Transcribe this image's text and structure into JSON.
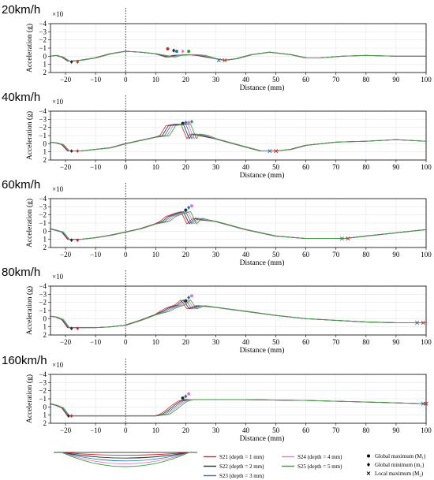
{
  "figure": {
    "xlabel": "Distance (mm)",
    "ylabel": "Acceleration (g)",
    "exponent_label": "×10",
    "legend_series": [
      {
        "name": "S21 (depth = 1 mm)",
        "color": "#d62728"
      },
      {
        "name": "S22 (depth = 2 mm)",
        "color": "#2b2b2b"
      },
      {
        "name": "S23 (depth = 3 mm)",
        "color": "#1f77b4"
      },
      {
        "name": "S24 (depth = 4 mm)",
        "color": "#e377c2"
      },
      {
        "name": "S25 (depth = 5 mm)",
        "color": "#2ca02c"
      }
    ],
    "legend_markers": [
      {
        "symbol": "circle",
        "label": "Global maximum (M₁)"
      },
      {
        "symbol": "diamond",
        "label": "Global minimum (m₁)"
      },
      {
        "symbol": "cross",
        "label": "Local maximum (M₂)"
      }
    ]
  },
  "chart_data": [
    {
      "type": "line",
      "title": "20km/h",
      "xlabel": "Distance (mm)",
      "ylabel": "Acceleration (g)",
      "xlim": [
        -25,
        100
      ],
      "ylim": [
        2,
        -4
      ],
      "xticks": [
        -20,
        -10,
        0,
        10,
        20,
        30,
        40,
        50,
        60,
        70,
        80,
        90,
        100
      ],
      "yticks": [
        -4,
        -3,
        -2,
        -1,
        0,
        1,
        2
      ],
      "dashed_vline_x": 0,
      "pts": [
        [
          -25,
          0
        ],
        [
          -23,
          -0.1
        ],
        [
          -21,
          0.1
        ],
        [
          -19,
          0.6
        ],
        [
          -18,
          0.6
        ],
        [
          -15,
          0.5
        ],
        [
          -10,
          0.2
        ],
        [
          -5,
          -0.3
        ],
        [
          0,
          -0.6
        ],
        [
          5,
          -0.5
        ],
        [
          10,
          -0.3
        ],
        [
          15,
          0.1
        ],
        [
          17,
          -0.1
        ],
        [
          22,
          -0.2
        ],
        [
          25,
          -0.1
        ],
        [
          30,
          0.3
        ],
        [
          33,
          0.5
        ],
        [
          37,
          0.3
        ],
        [
          42,
          -0.2
        ],
        [
          48,
          -0.5
        ],
        [
          55,
          -0.2
        ],
        [
          60,
          0.2
        ],
        [
          65,
          0.2
        ],
        [
          72,
          0
        ],
        [
          80,
          -0.1
        ],
        [
          90,
          0
        ],
        [
          100,
          0
        ]
      ],
      "jumps": [
        {
          "x": 14,
          "y": -0.9
        },
        {
          "x": 16,
          "y": -0.7
        },
        {
          "x": 17,
          "y": -0.6
        },
        {
          "x": 19,
          "y": -0.6
        },
        {
          "x": 21,
          "y": -0.6
        }
      ],
      "global_min_markers": [
        [
          -18,
          0.7
        ],
        [
          -16,
          0.7
        ]
      ],
      "local_max_markers": [
        [
          31,
          0.5
        ],
        [
          33,
          0.5
        ]
      ]
    },
    {
      "type": "line",
      "title": "40km/h",
      "xlabel": "Distance (mm)",
      "ylabel": "Acceleration (g)",
      "xlim": [
        -25,
        100
      ],
      "ylim": [
        2,
        -4
      ],
      "xticks": [
        -20,
        -10,
        0,
        10,
        20,
        30,
        40,
        50,
        60,
        70,
        80,
        90,
        100
      ],
      "yticks": [
        -4,
        -3,
        -2,
        -1,
        0,
        1,
        2
      ],
      "dashed_vline_x": 0,
      "pts": [
        [
          -25,
          -0.2
        ],
        [
          -23,
          -0.1
        ],
        [
          -21,
          0.1
        ],
        [
          -19,
          0.9
        ],
        [
          -18,
          0.9
        ],
        [
          -15,
          0.9
        ],
        [
          -10,
          0.7
        ],
        [
          -5,
          0.5
        ],
        [
          0,
          0
        ],
        [
          5,
          -0.4
        ],
        [
          10,
          -0.8
        ],
        [
          13,
          -1
        ],
        [
          15,
          -2.2
        ],
        [
          18,
          -2.4
        ],
        [
          20,
          -2.4
        ],
        [
          22,
          -0.6
        ],
        [
          23,
          -1.2
        ],
        [
          26,
          -1
        ],
        [
          30,
          -0.6
        ],
        [
          38,
          0.2
        ],
        [
          45,
          0.9
        ],
        [
          50,
          0.9
        ],
        [
          55,
          0.7
        ],
        [
          60,
          0.2
        ],
        [
          70,
          -0.2
        ],
        [
          80,
          -0.3
        ],
        [
          90,
          -0.5
        ],
        [
          100,
          -0.3
        ]
      ],
      "jumps": [
        {
          "x": 19,
          "y": -2.5
        },
        {
          "x": 20,
          "y": -2.6
        },
        {
          "x": 21,
          "y": -2.6
        },
        {
          "x": 22,
          "y": -2.7
        }
      ],
      "global_min_markers": [
        [
          -18,
          0.9
        ],
        [
          -16,
          0.9
        ]
      ],
      "local_max_markers": [
        [
          48,
          0.9
        ],
        [
          50,
          0.9
        ]
      ]
    },
    {
      "type": "line",
      "title": "60km/h",
      "xlabel": "Distance (mm)",
      "ylabel": "Acceleration (g)",
      "xlim": [
        -25,
        100
      ],
      "ylim": [
        2,
        -4
      ],
      "xticks": [
        -20,
        -10,
        0,
        10,
        20,
        30,
        40,
        50,
        60,
        70,
        80,
        90,
        100
      ],
      "yticks": [
        -4,
        -3,
        -2,
        -1,
        0,
        1,
        2
      ],
      "dashed_vline_x": 0,
      "pts": [
        [
          -25,
          -0.3
        ],
        [
          -23,
          -0.1
        ],
        [
          -21,
          0.1
        ],
        [
          -19,
          1
        ],
        [
          -18,
          1
        ],
        [
          -15,
          1
        ],
        [
          -10,
          0.8
        ],
        [
          -5,
          0.5
        ],
        [
          0,
          0.1
        ],
        [
          5,
          -0.3
        ],
        [
          10,
          -0.9
        ],
        [
          13,
          -1.2
        ],
        [
          15,
          -1.8
        ],
        [
          18,
          -2.2
        ],
        [
          20,
          -2.4
        ],
        [
          22,
          -0.9
        ],
        [
          24,
          -1.6
        ],
        [
          26,
          -1.4
        ],
        [
          30,
          -1.2
        ],
        [
          40,
          -0.2
        ],
        [
          50,
          0.6
        ],
        [
          60,
          0.9
        ],
        [
          70,
          0.9
        ],
        [
          73,
          0.9
        ],
        [
          80,
          0.6
        ],
        [
          90,
          0.2
        ],
        [
          100,
          -0.2
        ]
      ],
      "jumps": [
        {
          "x": 20,
          "y": -2.6
        },
        {
          "x": 21,
          "y": -2.9
        },
        {
          "x": 22,
          "y": -3.1
        }
      ],
      "global_min_markers": [
        [
          -18,
          1.1
        ],
        [
          -16,
          1.1
        ]
      ],
      "local_max_markers": [
        [
          72,
          0.9
        ],
        [
          74,
          0.9
        ]
      ]
    },
    {
      "type": "line",
      "title": "80km/h",
      "xlabel": "Distance (mm)",
      "ylabel": "Acceleration (g)",
      "xlim": [
        -25,
        100
      ],
      "ylim": [
        2,
        -4
      ],
      "xticks": [
        -20,
        -10,
        0,
        10,
        20,
        30,
        40,
        50,
        60,
        70,
        80,
        90,
        100
      ],
      "yticks": [
        -4,
        -3,
        -2,
        -1,
        0,
        1,
        2
      ],
      "dashed_vline_x": 0,
      "pts": [
        [
          -25,
          -0.3
        ],
        [
          -23,
          -0.2
        ],
        [
          -21,
          0.1
        ],
        [
          -19,
          1.1
        ],
        [
          -18,
          1.1
        ],
        [
          -15,
          1.1
        ],
        [
          -10,
          1.1
        ],
        [
          -5,
          1
        ],
        [
          0,
          0.8
        ],
        [
          5,
          0.2
        ],
        [
          10,
          -0.5
        ],
        [
          13,
          -0.9
        ],
        [
          15,
          -1.3
        ],
        [
          18,
          -1.7
        ],
        [
          20,
          -2.3
        ],
        [
          22,
          -1.2
        ],
        [
          25,
          -1.6
        ],
        [
          30,
          -1.4
        ],
        [
          40,
          -0.9
        ],
        [
          50,
          -0.4
        ],
        [
          60,
          0
        ],
        [
          70,
          0.2
        ],
        [
          80,
          0.4
        ],
        [
          90,
          0.5
        ],
        [
          98,
          0.5
        ],
        [
          100,
          0.5
        ]
      ],
      "jumps": [
        {
          "x": 20,
          "y": -2.2
        },
        {
          "x": 21,
          "y": -2.6
        },
        {
          "x": 22,
          "y": -2.8
        }
      ],
      "global_min_markers": [
        [
          -18,
          1.2
        ],
        [
          -16,
          1.2
        ]
      ],
      "local_max_markers": [
        [
          97,
          0.5
        ],
        [
          99,
          0.5
        ]
      ]
    },
    {
      "type": "line",
      "title": "160km/h",
      "xlabel": "Distance (mm)",
      "ylabel": "Acceleration (g)",
      "xlim": [
        -25,
        100
      ],
      "ylim": [
        2,
        -4
      ],
      "xticks": [
        -20,
        -10,
        0,
        10,
        20,
        30,
        40,
        50,
        60,
        70,
        80,
        90,
        100
      ],
      "yticks": [
        -4,
        -3,
        -2,
        -1,
        0,
        1,
        2
      ],
      "dashed_vline_x": 0,
      "pts": [
        [
          -25,
          -0.4
        ],
        [
          -23,
          -0.2
        ],
        [
          -21,
          0.1
        ],
        [
          -19,
          1.1
        ],
        [
          -18,
          1.1
        ],
        [
          -10,
          1.1
        ],
        [
          0,
          1.1
        ],
        [
          5,
          1.1
        ],
        [
          10,
          1.1
        ],
        [
          13,
          0.9
        ],
        [
          15,
          0.4
        ],
        [
          17,
          -0.2
        ],
        [
          19,
          -0.7
        ],
        [
          21,
          -0.9
        ],
        [
          23,
          -0.9
        ],
        [
          25,
          -0.9
        ],
        [
          40,
          -0.9
        ],
        [
          60,
          -0.8
        ],
        [
          80,
          -0.6
        ],
        [
          100,
          -0.4
        ]
      ],
      "jumps": [
        {
          "x": 19,
          "y": -1.1
        },
        {
          "x": 20,
          "y": -1.3
        },
        {
          "x": 21,
          "y": -1.6
        }
      ],
      "global_min_markers": [
        [
          -19,
          1.1
        ],
        [
          -18,
          1.1
        ]
      ],
      "local_max_markers": [
        [
          99,
          -0.4
        ],
        [
          100,
          -0.4
        ]
      ]
    }
  ]
}
